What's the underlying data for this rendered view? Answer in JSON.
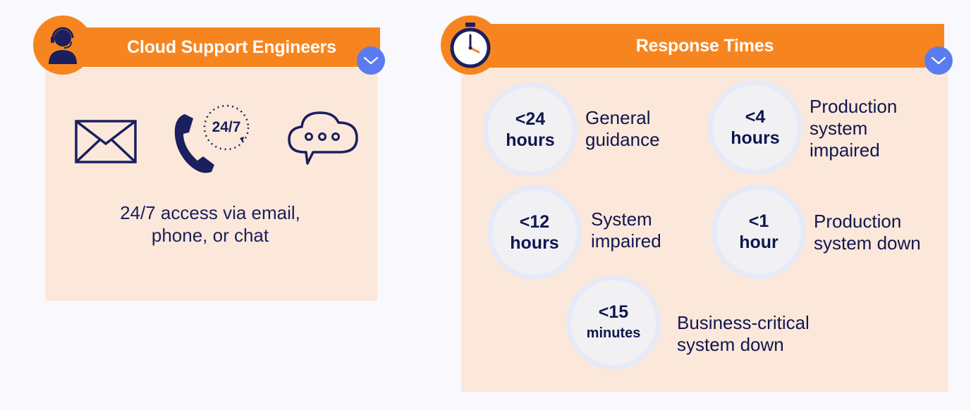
{
  "colors": {
    "accent_orange": "#f7851f",
    "panel_bg": "#fbe8da",
    "page_bg": "#f8f8fd",
    "navy": "#1b1f5e",
    "chevron_blue": "#5b7cf0"
  },
  "support": {
    "title": "Cloud Support Engineers",
    "badge_icon": "headset-agent-icon",
    "icons": [
      "envelope-icon",
      "phone-24-7-icon",
      "chat-bubble-icon"
    ],
    "phone_badge_text": "24/7",
    "description_line1": "24/7 access via email,",
    "description_line2": "phone, or chat"
  },
  "response": {
    "title": "Response Times",
    "badge_icon": "stopwatch-icon",
    "items": [
      {
        "value": "<24",
        "unit": "hours",
        "label_line1": "General",
        "label_line2": "guidance"
      },
      {
        "value": "<4",
        "unit": "hours",
        "label_line1": "Production",
        "label_line2": "system",
        "label_line3": "impaired"
      },
      {
        "value": "<12",
        "unit": "hours",
        "label_line1": "System",
        "label_line2": "impaired"
      },
      {
        "value": "<1",
        "unit": "hour",
        "label_line1": "Production",
        "label_line2": "system down"
      },
      {
        "value": "<15",
        "unit": "minutes",
        "label_line1": "Business-critical",
        "label_line2": "system down"
      }
    ]
  }
}
